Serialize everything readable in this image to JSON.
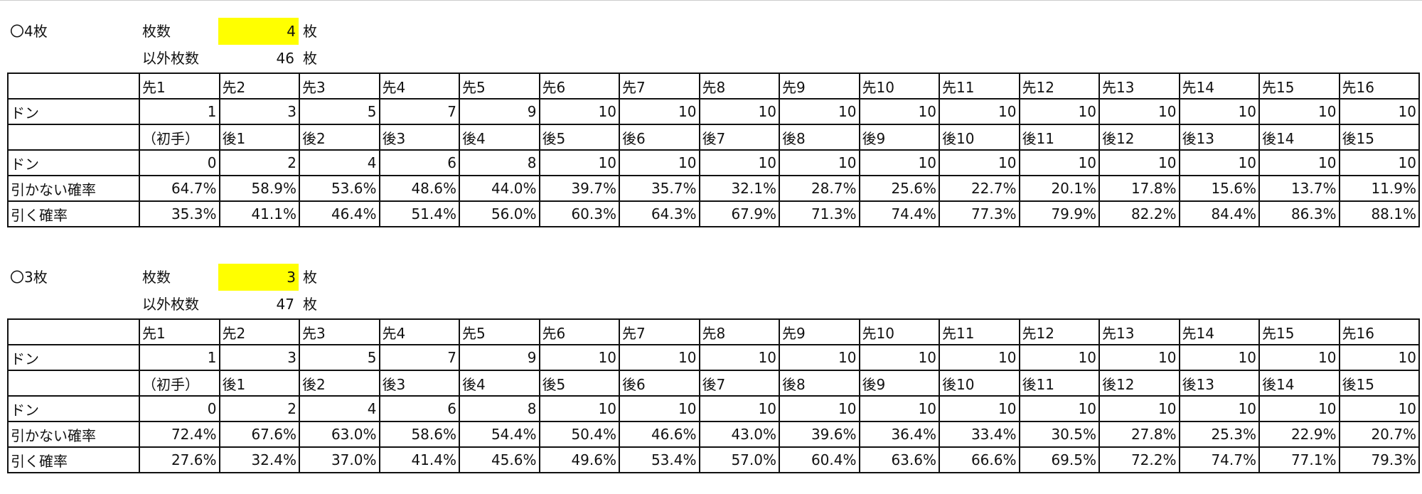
{
  "sections": [
    {
      "title": "〇4枚",
      "count_label": "枚数",
      "count": 4,
      "count_unit": "枚",
      "other_label": "以外枚数",
      "other_count": 46,
      "other_unit": "枚",
      "table": {
        "rows": [
          {
            "cells": [
              "先1",
              "先2",
              "先3",
              "先4",
              "先5",
              "先6",
              "先7",
              "先8",
              "先9",
              "先10",
              "先11",
              "先12",
              "先13",
              "先14",
              "先15",
              "先16"
            ]
          },
          {
            "label": "ドン",
            "cells": [
              1,
              3,
              5,
              7,
              9,
              10,
              10,
              10,
              10,
              10,
              10,
              10,
              10,
              10,
              10,
              10
            ]
          },
          {
            "cells": [
              "（初手）",
              "後1",
              "後2",
              "後3",
              "後4",
              "後5",
              "後6",
              "後7",
              "後8",
              "後9",
              "後10",
              "後11",
              "後12",
              "後13",
              "後14",
              "後15"
            ]
          },
          {
            "label": "ドン",
            "cells": [
              0,
              2,
              4,
              6,
              8,
              10,
              10,
              10,
              10,
              10,
              10,
              10,
              10,
              10,
              10,
              10
            ]
          },
          {
            "label": "引かない確率",
            "cells": [
              "64.7%",
              "58.9%",
              "53.6%",
              "48.6%",
              "44.0%",
              "39.7%",
              "35.7%",
              "32.1%",
              "28.7%",
              "25.6%",
              "22.7%",
              "20.1%",
              "17.8%",
              "15.6%",
              "13.7%",
              "11.9%"
            ]
          },
          {
            "label": "引く確率",
            "cells": [
              "35.3%",
              "41.1%",
              "46.4%",
              "51.4%",
              "56.0%",
              "60.3%",
              "64.3%",
              "67.9%",
              "71.3%",
              "74.4%",
              "77.3%",
              "79.9%",
              "82.2%",
              "84.4%",
              "86.3%",
              "88.1%"
            ]
          }
        ]
      }
    },
    {
      "title": "〇3枚",
      "count_label": "枚数",
      "count": 3,
      "count_unit": "枚",
      "other_label": "以外枚数",
      "other_count": 47,
      "other_unit": "枚",
      "table": {
        "rows": [
          {
            "cells": [
              "先1",
              "先2",
              "先3",
              "先4",
              "先5",
              "先6",
              "先7",
              "先8",
              "先9",
              "先10",
              "先11",
              "先12",
              "先13",
              "先14",
              "先15",
              "先16"
            ]
          },
          {
            "label": "ドン",
            "cells": [
              1,
              3,
              5,
              7,
              9,
              10,
              10,
              10,
              10,
              10,
              10,
              10,
              10,
              10,
              10,
              10
            ]
          },
          {
            "cells": [
              "（初手）",
              "後1",
              "後2",
              "後3",
              "後4",
              "後5",
              "後6",
              "後7",
              "後8",
              "後9",
              "後10",
              "後11",
              "後12",
              "後13",
              "後14",
              "後15"
            ]
          },
          {
            "label": "ドン",
            "cells": [
              0,
              2,
              4,
              6,
              8,
              10,
              10,
              10,
              10,
              10,
              10,
              10,
              10,
              10,
              10,
              10
            ]
          },
          {
            "label": "引かない確率",
            "cells": [
              "72.4%",
              "67.6%",
              "63.0%",
              "58.6%",
              "54.4%",
              "50.4%",
              "46.6%",
              "43.0%",
              "39.6%",
              "36.4%",
              "33.4%",
              "30.5%",
              "27.8%",
              "25.3%",
              "22.9%",
              "20.7%"
            ]
          },
          {
            "label": "引く確率",
            "cells": [
              "27.6%",
              "32.4%",
              "37.0%",
              "41.4%",
              "45.6%",
              "49.6%",
              "53.4%",
              "57.0%",
              "60.4%",
              "63.6%",
              "66.6%",
              "69.5%",
              "72.2%",
              "74.7%",
              "77.1%",
              "79.3%"
            ]
          }
        ]
      }
    }
  ]
}
